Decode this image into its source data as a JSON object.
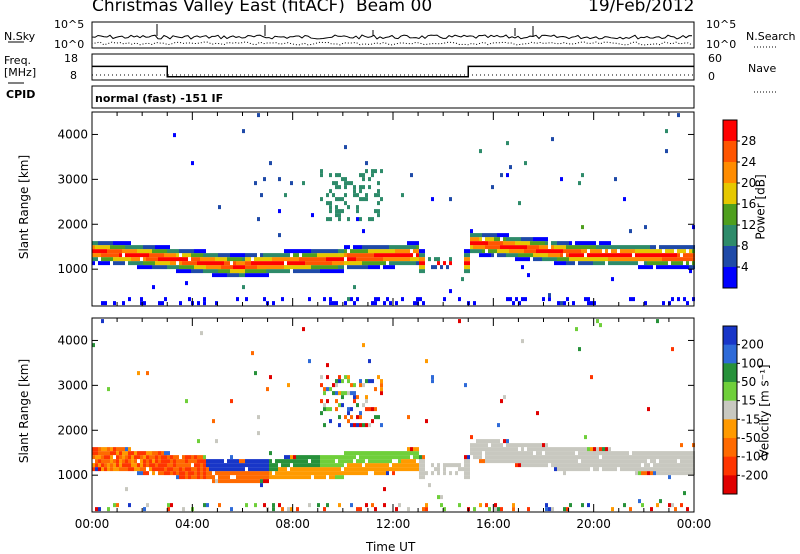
{
  "header": {
    "station": "Christmas Valley East (fitACF)",
    "beam": "Beam 00",
    "date": "19/Feb/2012"
  },
  "panels": {
    "nsky_label": "N.Sky",
    "nsearch_label": "N.Search",
    "nsky_ticks": [
      "10^5",
      "10^0"
    ],
    "nsearch_ticks": [
      "10^5",
      "10^0"
    ],
    "freq_label_1": "Freq.",
    "freq_label_2": "[MHz]",
    "freq_ticks": [
      "18",
      "8"
    ],
    "nave_label": "Nave",
    "nave_ticks": [
      "60",
      "0"
    ],
    "cpid_label": "CPID",
    "cpid_text": "normal (fast) -151 IF"
  },
  "chart_data": [
    {
      "type": "heatmap",
      "title": "",
      "ylabel": "Slant Range [km]",
      "yticks": [
        "4000",
        "3000",
        "2000",
        "1000"
      ],
      "ylim": [
        180,
        4500
      ],
      "xlim": [
        0,
        24
      ],
      "colorbar_label": "Power [dB]",
      "colorbar_ticks": [
        "28",
        "24",
        "20",
        "16",
        "12",
        "8",
        "4"
      ],
      "colorbar_colors": [
        "#ff0000",
        "#ff5500",
        "#ff8c00",
        "#e6c800",
        "#4f9f1e",
        "#2e8b6a",
        "#1f4aa8",
        "#0000ff"
      ]
    },
    {
      "type": "heatmap",
      "title": "",
      "xlabel": "Time UT",
      "ylabel": "Slant Range [km]",
      "yticks": [
        "4000",
        "3000",
        "2000",
        "1000"
      ],
      "xticks": [
        "00:00",
        "04:00",
        "08:00",
        "12:00",
        "16:00",
        "20:00",
        "00:00"
      ],
      "ylim": [
        180,
        4500
      ],
      "xlim": [
        0,
        24
      ],
      "colorbar_label": "Velocity [m s⁻¹]",
      "colorbar_ticks": [
        "200",
        "100",
        "50",
        "15",
        "-15",
        "-50",
        "-100",
        "-200"
      ],
      "colorbar_colors": [
        "#1836c8",
        "#2e6ad8",
        "#27913a",
        "#6fcf3a",
        "#c8c8c0",
        "#ff9a00",
        "#ff6a00",
        "#ff3500",
        "#e00000"
      ]
    }
  ],
  "freq_steps": [
    {
      "t0": 0,
      "t1": 3,
      "mhz": 14
    },
    {
      "t0": 3,
      "t1": 15,
      "mhz": 10
    },
    {
      "t0": 15,
      "t1": 24,
      "mhz": 14
    }
  ]
}
